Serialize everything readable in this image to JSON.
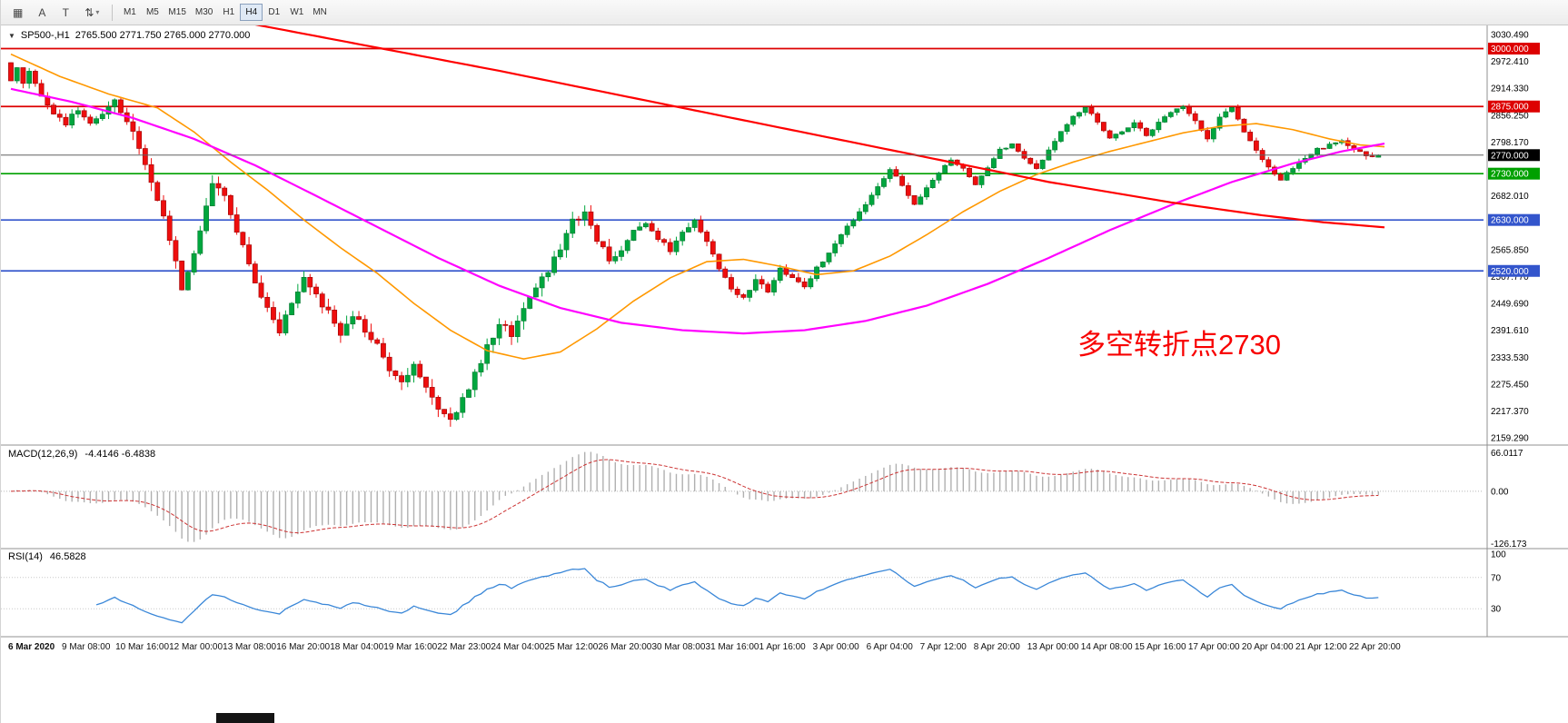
{
  "toolbar": {
    "buttons": [
      {
        "name": "chart-style-icon",
        "glyph": "▦"
      },
      {
        "name": "annotation-a-icon",
        "glyph": "A"
      },
      {
        "name": "text-tool-icon",
        "glyph": "T"
      },
      {
        "name": "scale-updown-icon",
        "glyph": "⇅",
        "caret": "▾"
      }
    ],
    "timeframes": [
      "M1",
      "M5",
      "M15",
      "M30",
      "H1",
      "H4",
      "D1",
      "W1",
      "MN"
    ],
    "active_timeframe": "H4"
  },
  "chart_header": {
    "collapse_glyph": "▼",
    "symbol_period": "SP500-,H1",
    "ohlc_text": "2765.500 2771.750 2765.000 2770.000"
  },
  "annotation": {
    "text": "多空转折点2730",
    "color": "#f80000"
  },
  "indicators": {
    "macd": {
      "label": "MACD(12,26,9)",
      "values": "-4.4146 -6.4838",
      "axis_labels": [
        "66.0117",
        "0.00",
        "-126.173"
      ]
    },
    "rsi": {
      "label": "RSI(14)",
      "value": "46.5828",
      "axis_labels": [
        "100",
        "70",
        "30"
      ],
      "levels": [
        70,
        30
      ]
    }
  },
  "chart_data": {
    "type": "candlestick",
    "symbol": "SP500-",
    "timeframe": "H1",
    "current_ohlc": {
      "open": 2765.5,
      "high": 2771.75,
      "low": 2765.0,
      "close": 2770.0
    },
    "bar_count": 225,
    "seed": 12,
    "ylim": [
      2144,
      3050
    ],
    "y_axis_ticks": [
      3030.49,
      2972.41,
      2914.33,
      2856.25,
      2798.17,
      2682.01,
      2565.85,
      2507.77,
      2449.69,
      2391.61,
      2333.53,
      2275.45,
      2217.37,
      2159.29
    ],
    "levels": [
      {
        "price": 3000.0,
        "color": "#dd0000"
      },
      {
        "price": 2875.0,
        "color": "#dd0000"
      },
      {
        "price": 2730.0,
        "color": "#00a000"
      },
      {
        "price": 2630.0,
        "color": "#3355cc"
      },
      {
        "price": 2520.0,
        "color": "#3355cc"
      }
    ],
    "current_price": {
      "value": 2770.0,
      "line_color": "#606060",
      "label_bg": "#000000"
    },
    "colors": {
      "up": "#00a63e",
      "up_border": "#04762f",
      "down": "#ee0e0e",
      "down_border": "#990404"
    },
    "volatility": [
      {
        "until": 20,
        "jitter": 11,
        "wick": 13
      },
      {
        "until": 100,
        "jitter": 15,
        "wick": 19
      },
      {
        "until": 140,
        "jitter": 9,
        "wick": 11
      },
      {
        "until": 226,
        "jitter": 6,
        "wick": 8
      }
    ],
    "price_path": [
      [
        0,
        2972
      ],
      [
        1,
        2935
      ],
      [
        2,
        2958
      ],
      [
        3,
        2920
      ],
      [
        4,
        2955
      ],
      [
        5,
        2930
      ],
      [
        6,
        2895
      ],
      [
        8,
        2858
      ],
      [
        10,
        2840
      ],
      [
        12,
        2868
      ],
      [
        14,
        2836
      ],
      [
        16,
        2858
      ],
      [
        18,
        2884
      ],
      [
        20,
        2845
      ],
      [
        22,
        2786
      ],
      [
        24,
        2715
      ],
      [
        26,
        2640
      ],
      [
        28,
        2545
      ],
      [
        29,
        2482
      ],
      [
        30,
        2520
      ],
      [
        32,
        2605
      ],
      [
        34,
        2712
      ],
      [
        36,
        2685
      ],
      [
        38,
        2605
      ],
      [
        40,
        2540
      ],
      [
        42,
        2462
      ],
      [
        44,
        2420
      ],
      [
        45,
        2392
      ],
      [
        47,
        2452
      ],
      [
        49,
        2508
      ],
      [
        51,
        2465
      ],
      [
        53,
        2432
      ],
      [
        55,
        2385
      ],
      [
        57,
        2428
      ],
      [
        59,
        2395
      ],
      [
        61,
        2362
      ],
      [
        63,
        2305
      ],
      [
        65,
        2285
      ],
      [
        67,
        2318
      ],
      [
        69,
        2262
      ],
      [
        71,
        2225
      ],
      [
        73,
        2195
      ],
      [
        75,
        2240
      ],
      [
        77,
        2296
      ],
      [
        79,
        2355
      ],
      [
        81,
        2408
      ],
      [
        83,
        2382
      ],
      [
        85,
        2442
      ],
      [
        87,
        2485
      ],
      [
        89,
        2522
      ],
      [
        91,
        2565
      ],
      [
        93,
        2625
      ],
      [
        95,
        2648
      ],
      [
        97,
        2588
      ],
      [
        99,
        2545
      ],
      [
        101,
        2565
      ],
      [
        103,
        2605
      ],
      [
        105,
        2625
      ],
      [
        107,
        2592
      ],
      [
        109,
        2565
      ],
      [
        111,
        2605
      ],
      [
        113,
        2628
      ],
      [
        115,
        2585
      ],
      [
        117,
        2525
      ],
      [
        119,
        2482
      ],
      [
        121,
        2462
      ],
      [
        123,
        2502
      ],
      [
        125,
        2478
      ],
      [
        127,
        2522
      ],
      [
        129,
        2508
      ],
      [
        131,
        2482
      ],
      [
        133,
        2525
      ],
      [
        135,
        2562
      ],
      [
        137,
        2602
      ],
      [
        139,
        2632
      ],
      [
        141,
        2662
      ],
      [
        143,
        2702
      ],
      [
        145,
        2742
      ],
      [
        147,
        2705
      ],
      [
        149,
        2662
      ],
      [
        151,
        2702
      ],
      [
        153,
        2732
      ],
      [
        155,
        2762
      ],
      [
        157,
        2742
      ],
      [
        159,
        2705
      ],
      [
        161,
        2742
      ],
      [
        163,
        2782
      ],
      [
        165,
        2792
      ],
      [
        167,
        2762
      ],
      [
        169,
        2742
      ],
      [
        171,
        2782
      ],
      [
        173,
        2822
      ],
      [
        175,
        2852
      ],
      [
        177,
        2872
      ],
      [
        179,
        2842
      ],
      [
        181,
        2805
      ],
      [
        183,
        2822
      ],
      [
        185,
        2842
      ],
      [
        187,
        2812
      ],
      [
        189,
        2842
      ],
      [
        191,
        2862
      ],
      [
        193,
        2875
      ],
      [
        195,
        2842
      ],
      [
        197,
        2805
      ],
      [
        199,
        2852
      ],
      [
        201,
        2872
      ],
      [
        203,
        2822
      ],
      [
        205,
        2782
      ],
      [
        207,
        2742
      ],
      [
        209,
        2718
      ],
      [
        211,
        2742
      ],
      [
        213,
        2762
      ],
      [
        215,
        2782
      ],
      [
        217,
        2792
      ],
      [
        219,
        2802
      ],
      [
        221,
        2782
      ],
      [
        223,
        2768
      ],
      [
        225,
        2770
      ]
    ],
    "moving_averages": [
      {
        "name": "fast-orange",
        "color": "#ff9800",
        "width": 1.6,
        "path": [
          [
            0,
            2988
          ],
          [
            8,
            2940
          ],
          [
            16,
            2902
          ],
          [
            24,
            2872
          ],
          [
            30,
            2820
          ],
          [
            36,
            2755
          ],
          [
            42,
            2695
          ],
          [
            48,
            2630
          ],
          [
            54,
            2570
          ],
          [
            60,
            2515
          ],
          [
            66,
            2450
          ],
          [
            72,
            2392
          ],
          [
            78,
            2348
          ],
          [
            84,
            2330
          ],
          [
            90,
            2345
          ],
          [
            96,
            2395
          ],
          [
            102,
            2455
          ],
          [
            108,
            2505
          ],
          [
            114,
            2540
          ],
          [
            120,
            2545
          ],
          [
            126,
            2530
          ],
          [
            132,
            2512
          ],
          [
            138,
            2520
          ],
          [
            144,
            2552
          ],
          [
            150,
            2598
          ],
          [
            156,
            2648
          ],
          [
            162,
            2692
          ],
          [
            168,
            2728
          ],
          [
            174,
            2755
          ],
          [
            180,
            2778
          ],
          [
            186,
            2798
          ],
          [
            192,
            2818
          ],
          [
            198,
            2832
          ],
          [
            204,
            2838
          ],
          [
            210,
            2825
          ],
          [
            216,
            2805
          ],
          [
            221,
            2792
          ],
          [
            225,
            2788
          ]
        ]
      },
      {
        "name": "mid-magenta",
        "color": "#ff00ff",
        "width": 2.2,
        "path": [
          [
            0,
            2913
          ],
          [
            10,
            2885
          ],
          [
            20,
            2850
          ],
          [
            30,
            2805
          ],
          [
            40,
            2748
          ],
          [
            50,
            2682
          ],
          [
            60,
            2615
          ],
          [
            70,
            2548
          ],
          [
            80,
            2488
          ],
          [
            90,
            2440
          ],
          [
            100,
            2408
          ],
          [
            110,
            2392
          ],
          [
            120,
            2385
          ],
          [
            130,
            2392
          ],
          [
            140,
            2412
          ],
          [
            150,
            2445
          ],
          [
            160,
            2492
          ],
          [
            170,
            2548
          ],
          [
            180,
            2608
          ],
          [
            190,
            2662
          ],
          [
            200,
            2712
          ],
          [
            210,
            2752
          ],
          [
            218,
            2778
          ],
          [
            225,
            2795
          ]
        ]
      },
      {
        "name": "slow-red",
        "color": "#ff0000",
        "width": 2.2,
        "path": [
          [
            0,
            3150
          ],
          [
            40,
            3052
          ],
          [
            80,
            2952
          ],
          [
            110,
            2872
          ],
          [
            140,
            2792
          ],
          [
            170,
            2712
          ],
          [
            190,
            2668
          ],
          [
            205,
            2640
          ],
          [
            215,
            2625
          ],
          [
            225,
            2614
          ]
        ]
      }
    ],
    "macd_style": {
      "hist": "#b0b0b0",
      "signal": "#cc3333"
    },
    "rsi_style": {
      "line": "#3a87d8",
      "levels_color": "#c8c8c8"
    },
    "x_axis_labels": [
      "6 Mar 2020",
      "9 Mar 08:00",
      "10 Mar 16:00",
      "12 Mar 00:00",
      "13 Mar 08:00",
      "16 Mar 20:00",
      "18 Mar 04:00",
      "19 Mar 16:00",
      "22 Mar 23:00",
      "24 Mar 04:00",
      "25 Mar 12:00",
      "26 Mar 20:00",
      "30 Mar 08:00",
      "31 Mar 16:00",
      "1 Apr 16:00",
      "3 Apr 00:00",
      "6 Apr 04:00",
      "7 Apr 12:00",
      "8 Apr 20:00",
      "13 Apr 00:00",
      "14 Apr 08:00",
      "15 Apr 16:00",
      "17 Apr 00:00",
      "20 Apr 04:00",
      "21 Apr 12:00",
      "22 Apr 20:00"
    ]
  }
}
